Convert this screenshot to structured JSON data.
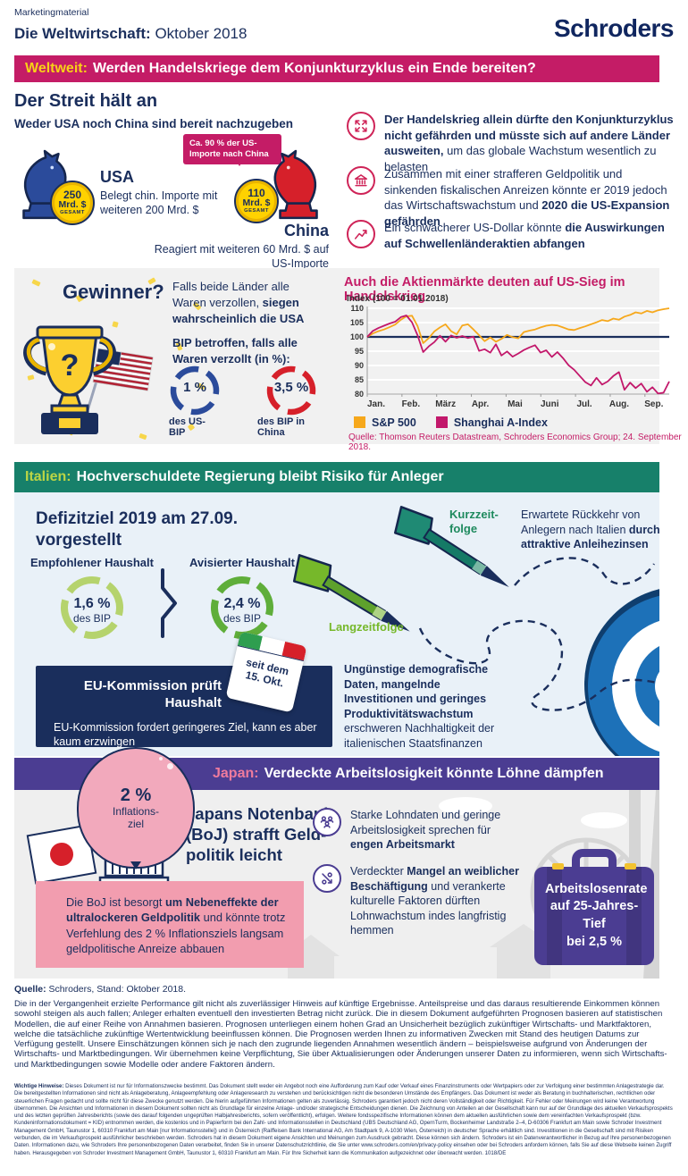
{
  "colors": {
    "navy": "#1a2e5c",
    "magenta": "#c41c66",
    "yellow": "#f7d117",
    "teal": "#17806a",
    "lime": "#bcd545",
    "purple": "#4b3d92",
    "salmon": "#ef7b9d",
    "blue": "#2b4b9b",
    "red": "#d6202a",
    "orange": "#f6a81c",
    "green_light": "#b5d36d",
    "green_dark": "#5fae3a",
    "panel_blue": "#e9f1f8",
    "panel_gray": "#efefef"
  },
  "header": {
    "eyebrow": "Marketingmaterial",
    "title_bold": "Die Weltwirtschaft:",
    "title_rest": " Oktober 2018",
    "logo": "Schroders"
  },
  "world_banner": {
    "tag": "Weltweit:",
    "text": "Werden Handelskriege dem Konjunkturzyklus ein Ende bereiten?"
  },
  "world": {
    "heading": "Der Streit hält an",
    "subheading": "Weder USA noch China sind bereit nachzugeben",
    "usa": {
      "coin_value": "250",
      "coin_unit": "Mrd. $",
      "coin_caption": "GESAMT",
      "name": "USA",
      "desc": "Belegt chin. Importe mit weiteren 200 Mrd. $"
    },
    "bubble": "Ca. 90 % der US-Importe nach China",
    "china": {
      "coin_value": "110",
      "coin_unit": "Mrd. $",
      "coin_caption": "GESAMT",
      "name": "China",
      "desc": "Reagiert mit weiteren 60 Mrd. $ auf US-Importe"
    },
    "bullets": [
      {
        "icon": "expand-arrows-icon",
        "segments": [
          {
            "t": "Der Handelskrieg allein dürfte den Konjunkturzyklus nicht gefährden und müsste sich auf andere Länder ausweiten,",
            "b": true
          },
          {
            "t": " um das globale Wachstum wesentlich zu belasten",
            "b": false
          }
        ]
      },
      {
        "icon": "bank-icon",
        "segments": [
          {
            "t": "Zusammen mit einer strafferen Geldpolitik und sinkenden fiskalischen Anreizen könnte er 2019 jedoch das Wirtschaftswachstum und ",
            "b": false
          },
          {
            "t": "2020 die US-Expansion gefährden",
            "b": true
          }
        ]
      },
      {
        "icon": "trend-up-icon",
        "segments": [
          {
            "t": "Ein schwächerer US-Dollar könnte ",
            "b": false
          },
          {
            "t": "die Auswirkungen auf Schwellenländeraktien abfangen",
            "b": true
          }
        ]
      }
    ]
  },
  "winner": {
    "heading": "Gewinner?",
    "statement": [
      {
        "t": "Falls beide Länder alle Waren verzollen, ",
        "b": false
      },
      {
        "t": "siegen wahrscheinlich die USA",
        "b": true
      }
    ],
    "gdp_heading": "BIP betroffen, falls alle Waren verzollt (in %):",
    "us_value": "1 %",
    "us_label": "des US-BIP",
    "cn_value": "3,5 %",
    "cn_label": "des BIP in China"
  },
  "chart_data": {
    "type": "line",
    "title": "Auch die Aktienmärkte deuten auf US-Sieg im Handelskrieg",
    "axis_note": "Index (100 = 01.01.2018)",
    "x_tick_labels": [
      "Jan.",
      "Feb.",
      "März",
      "Apr.",
      "Mai",
      "Juni",
      "Jul.",
      "Aug.",
      "Sep."
    ],
    "x_months_span": 8.7,
    "ylim": [
      80,
      110
    ],
    "yticks": [
      80,
      85,
      90,
      95,
      100,
      105,
      110
    ],
    "refline": 100,
    "grid": true,
    "legend_position": "bottom",
    "series": [
      {
        "name": "S&P 500",
        "color": "#f6a81c",
        "values": [
          100,
          101.2,
          102,
          102.6,
          103.4,
          104.3,
          106,
          107.2,
          107.4,
          103.8,
          97.8,
          99.6,
          101.9,
          103.3,
          104.4,
          102,
          100.9,
          104,
          104.4,
          102.6,
          100.6,
          98.5,
          99.8,
          98.3,
          99.3,
          100.7,
          99.9,
          99.5,
          101.7,
          102.2,
          102.6,
          103.3,
          103.9,
          104.2,
          104,
          103.3,
          102.6,
          102.4,
          103.1,
          103.7,
          104.4,
          105.1,
          105.9,
          105.5,
          106.4,
          106,
          107.1,
          107.7,
          108.6,
          108.2,
          109.1,
          108.6,
          109.3,
          109.7,
          110
        ]
      },
      {
        "name": "Shanghai A-Index",
        "color": "#c2186b",
        "values": [
          100,
          102.1,
          103.1,
          103.9,
          104.7,
          105.3,
          106.9,
          107.5,
          105.1,
          100.6,
          94.7,
          96.7,
          98.2,
          100.4,
          98.3,
          100.5,
          99.7,
          100.3,
          99.6,
          100.1,
          95.1,
          95.7,
          94.5,
          97.4,
          93.5,
          94.9,
          93.1,
          94.2,
          95.4,
          96.3,
          97.1,
          94.5,
          95.3,
          93,
          94.7,
          92.6,
          90.1,
          88.5,
          86.3,
          84.2,
          83,
          85.7,
          83.3,
          84.4,
          86.3,
          87.7,
          81.5,
          84,
          82.1,
          83.7,
          80.8,
          82.4,
          80.2,
          80.5,
          84.4
        ]
      }
    ],
    "source": "Quelle: Thomson Reuters Datastream, Schroders Economics Group; 24. September 2018."
  },
  "italy_banner": {
    "tag": "Italien:",
    "text": "Hochverschuldete Regierung bleibt Risiko für Anleger"
  },
  "italy": {
    "heading_lines": [
      "Defizitziel 2019 am 27.09.",
      "vorgestellt"
    ],
    "budget1_label": "Empfohlener Haushalt",
    "budget1_value": "1,6 %",
    "budget1_sub": "des BIP",
    "budget2_label": "Avisierter Haushalt",
    "budget2_value": "2,4 %",
    "budget2_sub": "des BIP",
    "short_label_lines": [
      "Kurzzeit-",
      "folge"
    ],
    "short_text": [
      {
        "t": "Erwartete Rückkehr von Anlegern nach Italien ",
        "b": false
      },
      {
        "t": "durch attraktive Anleihezinsen",
        "b": true
      }
    ],
    "long_label": "Langzeitfolge",
    "long_text": [
      {
        "t": "Ungünstige demografische Daten, mangelnde Investitionen und geringes Produktivitätswachstum",
        "b": true
      },
      {
        "t": " erschweren Nachhaltigkeit der italienischen Staatsfinanzen",
        "b": false
      }
    ],
    "eu_title": "EU-Kommission prüft Haushalt",
    "eu_text": "EU-Kommission fordert geringeres Ziel, kann es aber kaum erzwingen",
    "calendar_lines": [
      "seit dem",
      "15. Okt."
    ]
  },
  "japan_banner": {
    "tag": "Japan:",
    "text": "Verdeckte Arbeitslosigkeit könnte Löhne dämpfen"
  },
  "japan": {
    "balloon_value": "2 %",
    "balloon_label_lines": [
      "Inflations-",
      "ziel"
    ],
    "boj_label": "BoJ",
    "heading_lines": [
      "Japans Notenbank",
      "(BoJ) strafft Geld-",
      "politik leicht"
    ],
    "bullets": [
      {
        "icon": "people-icon",
        "segments": [
          {
            "t": "Starke Lohndaten und geringe Arbeitslosigkeit sprechen für ",
            "b": false
          },
          {
            "t": "engen Arbeitsmarkt",
            "b": true
          }
        ]
      },
      {
        "icon": "percent-decline-icon",
        "segments": [
          {
            "t": "Verdeckter ",
            "b": false
          },
          {
            "t": "Mangel an weiblicher Beschäftigung",
            "b": true
          },
          {
            "t": " und verankerte kulturelle Faktoren dürften Lohnwachstum indes langfristig hemmen",
            "b": false
          }
        ]
      }
    ],
    "pink_box": [
      {
        "t": "Die BoJ ist besorgt ",
        "b": false
      },
      {
        "t": "um Nebeneffekte der ultralockeren Geldpolitik",
        "b": true
      },
      {
        "t": " und könnte trotz Verfehlung des 2 % Inflationsziels langsam geldpolitische Anreize abbauen",
        "b": false
      }
    ],
    "suitcase_lines": [
      "Arbeitslosenrate",
      "auf 25-Jahres-Tief",
      "bei 2,5 %"
    ]
  },
  "footer": {
    "source": [
      {
        "t": "Quelle:",
        "b": true
      },
      {
        "t": " Schroders, Stand: Oktober 2018.",
        "b": false
      }
    ],
    "disclaimer": "Die in der Vergangenheit erzielte Performance gilt nicht als zuverlässiger Hinweis auf künftige Ergebnisse. Anteilspreise und das daraus resultierende Einkommen können sowohl steigen als auch fallen; Anleger erhalten eventuell den investierten Betrag nicht zurück. Die in diesem Dokument aufgeführten Prognosen basieren auf statistischen Modellen, die auf einer Reihe von Annahmen basieren. Prognosen unterliegen einem hohen Grad an Unsicherheit bezüglich zukünftiger Wirtschafts- und Marktfaktoren, welche die tatsächliche zukünftige Wertentwicklung beeinflussen können. Die Prognosen werden Ihnen zu informativen Zwecken mit Stand des heutigen Datums zur Verfügung gestellt. Unsere Einschätzungen können sich je nach den zugrunde liegenden Annahmen wesentlich ändern – beispielsweise aufgrund von Änderungen der Wirtschafts- und Marktbedingungen. Wir übernehmen keine Verpflichtung, Sie über Aktualisierungen oder Änderungen unserer Daten zu informieren, wenn sich Wirtschafts- und Marktbedingungen sowie Modelle oder andere Faktoren ändern.",
    "notes": [
      {
        "t": "Wichtige Hinweise:",
        "b": true
      },
      {
        "t": " Dieses Dokument ist nur für Informationszwecke bestimmt. Das Dokument stellt weder ein Angebot noch eine Aufforderung zum Kauf oder Verkauf eines Finanzinstruments oder Wertpapiers oder zur Verfolgung einer bestimmten Anlagestrategie dar. Die bereitgestellten Informationen sind nicht als Anlageberatung, Anlageempfehlung oder Anlageresearch zu verstehen und berücksichtigen nicht die besonderen Umstände des Empfängers. Das Dokument ist weder als Beratung in buchhalterischen, rechtlichen oder steuerlichen Fragen gedacht und sollte nicht für diese Zwecke genutzt werden. Die hierin aufgeführten Informationen gelten als zuverlässig. Schroders garantiert jedoch nicht deren Vollständigkeit oder Richtigkeit. Für Fehler oder Meinungen wird keine Verantwortung übernommen. Die Ansichten und Informationen in diesem Dokument sollten nicht als Grundlage für einzelne Anlage- und/oder strategische Entscheidungen dienen. Die Zeichnung von Anteilen an der Gesellschaft kann nur auf der Grundlage des aktuellen Verkaufsprospekts und des letzten geprüften Jahresberichts (sowie des darauf folgenden ungeprüften Halbjahresberichts, sofern veröffentlicht), erfolgen. Weitere fondsspezifische Informationen können dem aktuellen ausführlichen sowie dem vereinfachten Verkaufsprospekt (bzw. Kundeninformationsdokument = KID) entnommen werden, die kostenlos und in Papierform bei den Zahl- und Informationsstellen in Deutschland (UBS Deutschland AG, OpernTurm, Bockenheimer Landstraße 2–4, D-60306 Frankfurt am Main sowie Schroder Investment Management GmbH, Taunustor 1, 60310 Frankfurt am Main [nur Informationsstelle]) und in Österreich (Raiffeisen Bank International AG, Am Stadtpark 9, A-1030 Wien, Österreich) in deutscher Sprache erhältlich sind. Investitionen in die Gesellschaft sind mit Risiken verbunden, die im Verkaufsprospekt ausführlicher beschrieben werden. Schroders hat in diesem Dokument eigene Ansichten und Meinungen zum Ausdruck gebracht. Diese können sich ändern. Schroders ist ein Datenverantwortlicher in Bezug auf Ihre personenbezogenen Daten. Informationen dazu, wie Schroders Ihre personenbezogenen Daten verarbeitet, finden Sie in unserer Datenschutzrichtlinie, die Sie unter www.schroders.com/en/privacy-policy einsehen oder bei Schroders anfordern können, falls Sie auf diese Webseite keinen Zugriff haben. Herausgegeben von Schroder Investment Management GmbH, Taunustor 1, 60310 Frankfurt am Main. Für Ihre Sicherheit kann die Kommunikation aufgezeichnet oder überwacht werden. 1018/DE",
        "b": false
      }
    ]
  }
}
